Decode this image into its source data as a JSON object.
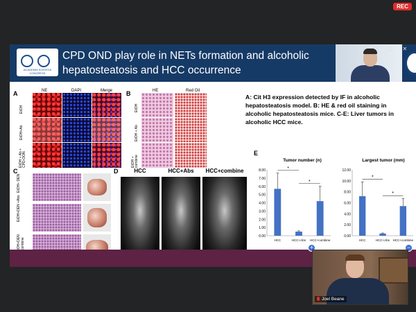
{
  "meeting": {
    "rec_label": "REC"
  },
  "slide": {
    "title": "CPD OND play role in NETs formation and alcoholic hepatosteatosis and HCC occurrence",
    "logo_text": "ACADEMIA SCIENTIA CONGRESS",
    "panel_labels": {
      "A": "A",
      "B": "B",
      "C": "C",
      "D": "D",
      "E": "E"
    },
    "panelA": {
      "columns": [
        "NE",
        "DAPI",
        "Merge"
      ],
      "rows": [
        "EtOH",
        "EtOH+Ab",
        "EtOH + Ab + CPD-OON"
      ]
    },
    "panelB": {
      "columns": [
        "HE",
        "Red Oil"
      ],
      "rows": [
        "EtOH",
        "EtOH + Ab",
        "EtOH + combine"
      ]
    },
    "panelC": {
      "rows": [
        "EtOH+ DEN",
        "EtOH+DEN +Abs",
        "EtOH+DEN +combine"
      ]
    },
    "panelD": {
      "columns": [
        "HCC",
        "HCC+Abs",
        "HCC+combine"
      ]
    },
    "description": "A: Cit H3 expression detected by IF in alcoholic hepatosteatosis model. B: HE & red oil staining in alcoholic hepatosteatosis mice. C-E: Liver tumors in alcoholic HCC mice."
  },
  "chart_data": [
    {
      "type": "bar",
      "title": "Tumor number (n)",
      "categories": [
        "HCC",
        "HCC+Abs",
        "HCC+combine"
      ],
      "values": [
        5.7,
        0.5,
        4.2
      ],
      "errors": [
        1.9,
        0.1,
        1.8
      ],
      "yticks": [
        "0.00",
        "1.00",
        "2.00",
        "3.00",
        "4.00",
        "5.00",
        "6.00",
        "7.00",
        "8.00"
      ],
      "ylim": [
        0,
        8
      ],
      "significance": [
        "*",
        "*"
      ],
      "color": "#4472c4"
    },
    {
      "type": "bar",
      "title": "Largest tumor (mm)",
      "categories": [
        "HCC",
        "HCC+Abs",
        "HCC+combine"
      ],
      "values": [
        7.2,
        0.4,
        5.4
      ],
      "errors": [
        2.6,
        0.1,
        1.4
      ],
      "yticks": [
        "0.00",
        "2.00",
        "4.00",
        "6.00",
        "8.00",
        "10.00",
        "12.00"
      ],
      "ylim": [
        0,
        12
      ],
      "significance": [
        "*",
        "*"
      ],
      "color": "#4472c4"
    }
  ],
  "participants": {
    "self_name": "Joel Beane"
  }
}
